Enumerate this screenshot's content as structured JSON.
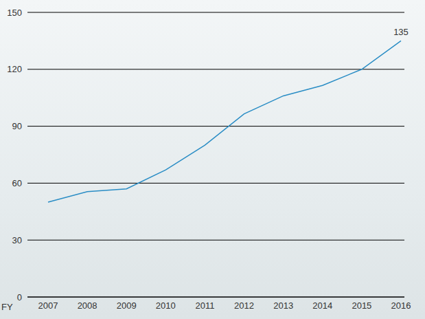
{
  "chart_data": {
    "type": "line",
    "x_label": "FY",
    "categories": [
      "2007",
      "2008",
      "2009",
      "2010",
      "2011",
      "2012",
      "2013",
      "2014",
      "2015",
      "2016"
    ],
    "values": [
      50,
      55.5,
      57,
      67,
      80,
      96.5,
      106,
      111.5,
      120,
      135
    ],
    "color": "#2a8dc5",
    "ylim": [
      0,
      150
    ],
    "yticks": [
      0,
      30,
      60,
      90,
      120,
      150
    ],
    "grid": true,
    "annotations": [
      {
        "x": "2016",
        "y": 135,
        "text": "135"
      }
    ]
  }
}
